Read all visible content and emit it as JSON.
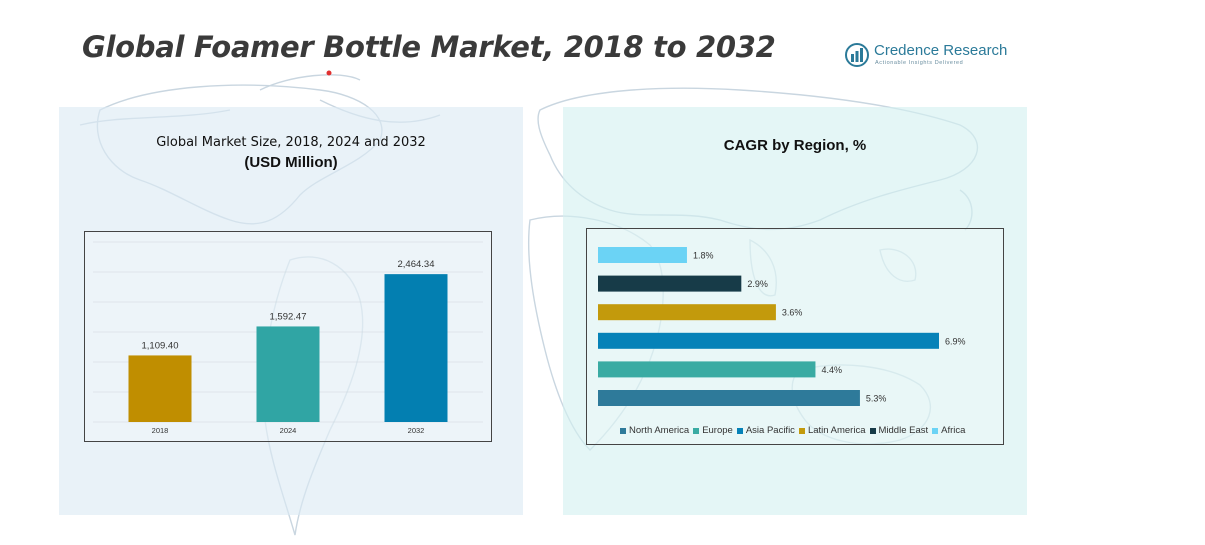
{
  "title": "Global Foamer Bottle Market, 2018 to 2032",
  "logo": {
    "name": "Credence Research",
    "tagline": "Actionable Insights Delivered"
  },
  "colors": {
    "bar_2018": "#C08E00",
    "bar_2024": "#30A5A4",
    "bar_2032": "#037FB1",
    "north_america": "#2E7A9A",
    "europe": "#3AABA3",
    "asia_pacific": "#0682B8",
    "latin_america": "#C39A0C",
    "middle_east": "#173B48",
    "africa": "#6BD3F5"
  },
  "chart_data": [
    {
      "type": "bar",
      "title": "Global Market Size, 2018, 2024 and 2032",
      "subtitle": "(USD Million)",
      "categories": [
        "2018",
        "2024",
        "2032"
      ],
      "values": [
        1109.4,
        1592.47,
        2464.34
      ],
      "value_labels": [
        "1,109.40",
        "1,592.47",
        "2,464.34"
      ],
      "ylim": [
        0,
        3000
      ],
      "grid": true,
      "legend": "none"
    },
    {
      "type": "bar",
      "orientation": "horizontal",
      "title": "CAGR by Region, %",
      "categories": [
        "Africa",
        "Middle East",
        "Latin America",
        "Asia Pacific",
        "Europe",
        "North America"
      ],
      "values": [
        1.8,
        2.9,
        3.6,
        6.9,
        4.4,
        5.3
      ],
      "value_labels": [
        "1.8%",
        "2.9%",
        "3.6%",
        "6.9%",
        "4.4%",
        "5.3%"
      ],
      "xlim": [
        0,
        7.5
      ],
      "legend": "bottom",
      "legend_items": [
        "North America",
        "Europe",
        "Asia Pacific",
        "Latin America",
        "Middle East",
        "Africa"
      ]
    }
  ]
}
